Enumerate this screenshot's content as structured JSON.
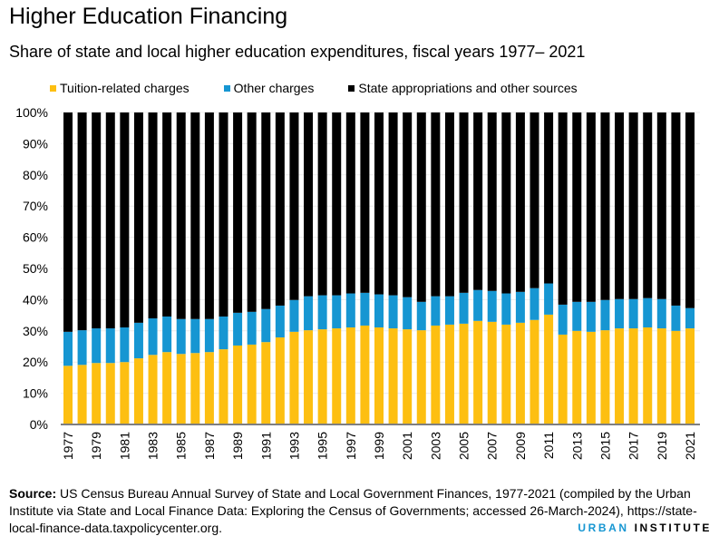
{
  "chart_data": {
    "type": "bar",
    "stacked": true,
    "title": "Higher Education Financing",
    "subtitle": "Share of state and local higher education expenditures,  fiscal years 1977– 2021",
    "xlabel": "",
    "ylabel": "",
    "ylim": [
      0,
      100
    ],
    "y_ticks": [
      "0%",
      "10%",
      "20%",
      "30%",
      "40%",
      "50%",
      "60%",
      "70%",
      "80%",
      "90%",
      "100%"
    ],
    "grid": true,
    "legend_position": "top",
    "categories": [
      "1977",
      "1978",
      "1979",
      "1980",
      "1981",
      "1982",
      "1983",
      "1984",
      "1985",
      "1986",
      "1987",
      "1988",
      "1989",
      "1990",
      "1991",
      "1992",
      "1993",
      "1994",
      "1995",
      "1996",
      "1997",
      "1998",
      "1999",
      "2000",
      "2001",
      "2002",
      "2003",
      "2004",
      "2005",
      "2006",
      "2007",
      "2008",
      "2009",
      "2010",
      "2011",
      "2012",
      "2013",
      "2014",
      "2015",
      "2016",
      "2017",
      "2018",
      "2019",
      "2020",
      "2021"
    ],
    "series": [
      {
        "name": "Tuition-related charges",
        "color": "#fdbf11",
        "values": [
          18.8,
          19.1,
          19.7,
          19.7,
          20.0,
          21.2,
          22.3,
          23.2,
          22.6,
          22.9,
          23.2,
          24.1,
          25.3,
          25.6,
          26.4,
          27.9,
          29.7,
          30.2,
          30.5,
          30.8,
          31.1,
          31.7,
          31.1,
          30.8,
          30.5,
          30.2,
          31.7,
          32.0,
          32.3,
          33.2,
          32.9,
          32.0,
          32.6,
          33.5,
          35.2,
          28.8,
          30.0,
          29.7,
          30.2,
          30.8,
          30.8,
          31.1,
          30.8,
          30.0,
          30.8
        ]
      },
      {
        "name": "Other charges",
        "color": "#1696d2",
        "values": [
          10.9,
          11.1,
          11.1,
          11.1,
          11.1,
          11.4,
          11.7,
          11.4,
          11.2,
          10.9,
          10.6,
          10.5,
          10.5,
          10.5,
          10.6,
          10.2,
          10.2,
          10.9,
          10.9,
          10.6,
          10.9,
          10.5,
          10.6,
          10.6,
          10.3,
          9.1,
          9.4,
          9.1,
          9.9,
          9.9,
          9.9,
          10.0,
          9.9,
          10.2,
          10.0,
          9.6,
          9.3,
          9.6,
          9.7,
          9.4,
          9.4,
          9.4,
          9.4,
          8.1,
          6.5
        ]
      },
      {
        "name": "State appropriations and other sources",
        "color": "#000000",
        "values": [
          70.3,
          69.8,
          69.2,
          69.2,
          68.9,
          67.4,
          66.0,
          65.4,
          66.2,
          66.2,
          66.2,
          65.4,
          64.2,
          63.9,
          63.0,
          61.9,
          60.1,
          58.9,
          58.6,
          58.6,
          58.0,
          57.8,
          58.3,
          58.6,
          59.2,
          60.7,
          58.9,
          58.9,
          57.8,
          56.9,
          57.2,
          58.0,
          57.5,
          56.3,
          54.8,
          61.6,
          60.7,
          60.7,
          60.1,
          59.8,
          59.8,
          59.5,
          59.8,
          61.9,
          62.7
        ]
      }
    ]
  },
  "footer": {
    "source_label": "Source:",
    "source_text": " US Census Bureau Annual Survey of State and Local Government Finances, 1977-2021 (compiled by the Urban Institute via State and Local Finance Data: Exploring the Census of Governments; accessed 26-March-2024), https://state-local-finance-data.taxpolicycenter.org.",
    "logo_part1": "URBAN",
    "logo_part2": "INSTITUTE",
    "logo_color": "#1696d2"
  }
}
